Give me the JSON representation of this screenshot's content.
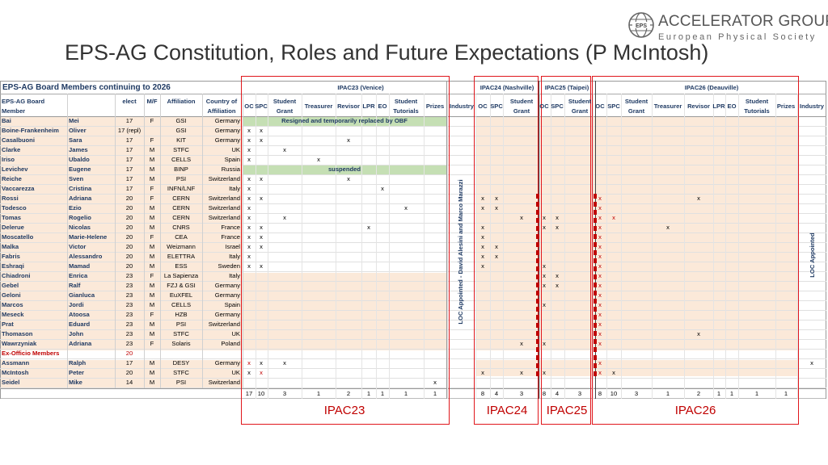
{
  "title": "EPS-AG Constitution, Roles and Future Expectations (P McIntosh)",
  "logo": {
    "badge": "EPS",
    "line1": "ACCELERATOR GROUP",
    "line2": "European Physical Society"
  },
  "header": {
    "board_title": "EPS-AG Board Members continuing to 2026",
    "sub": [
      "EPS-AG Board",
      "Member"
    ],
    "col_elect": "elect",
    "col_mf": "M/F",
    "col_aff": "Affiliation",
    "col_country": [
      "Country of",
      "Affiliation"
    ]
  },
  "role_cols": {
    "oc": "OC",
    "spc": "SPC",
    "student_grant": [
      "Student",
      "Grant"
    ],
    "treasurer": "Treasurer",
    "revisor": "Revisor",
    "lpr": "LPR",
    "eo": "EO",
    "student_tutorials": [
      "Student",
      "Tutorials"
    ],
    "prizes": "Prizes",
    "industry": "Industry"
  },
  "conferences": {
    "ipac23": "IPAC23 (Venice)",
    "ipac24": "IPAC24 (Nashville)",
    "ipac25": "IPAC25 (Taipei)",
    "ipac26": "IPAC26 (Deauville)"
  },
  "notes": {
    "bai": "Resigned and temporarily replaced by OBF",
    "levichev": "suspended",
    "loc_vertical": "LOC Appointed - David Alesini and Marco Marazzi",
    "loc_right": "LOC Appointed"
  },
  "exofficio_label": "Ex-Officio Members",
  "exofficio_elect": "20",
  "members": [
    {
      "surname": "Bai",
      "first": "Mei",
      "elect": "17",
      "mf": "F",
      "aff": "GSI",
      "country": "Germany"
    },
    {
      "surname": "Boine-Frankenheim",
      "first": "Oliver",
      "elect": "17 (repl)",
      "mf": "",
      "aff": "GSI",
      "country": "Germany"
    },
    {
      "surname": "Casalbuoni",
      "first": "Sara",
      "elect": "17",
      "mf": "F",
      "aff": "KIT",
      "country": "Germany"
    },
    {
      "surname": "Clarke",
      "first": "James",
      "elect": "17",
      "mf": "M",
      "aff": "STFC",
      "country": "UK"
    },
    {
      "surname": "Iriso",
      "first": "Ubaldo",
      "elect": "17",
      "mf": "M",
      "aff": "CELLS",
      "country": "Spain"
    },
    {
      "surname": "Levichev",
      "first": "Eugene",
      "elect": "17",
      "mf": "M",
      "aff": "BINP",
      "country": "Russia"
    },
    {
      "surname": "Reiche",
      "first": "Sven",
      "elect": "17",
      "mf": "M",
      "aff": "PSI",
      "country": "Switzerland"
    },
    {
      "surname": "Vaccarezza",
      "first": "Cristina",
      "elect": "17",
      "mf": "F",
      "aff": "INFN/LNF",
      "country": "Italy"
    },
    {
      "surname": "Rossi",
      "first": "Adriana",
      "elect": "20",
      "mf": "F",
      "aff": "CERN",
      "country": "Switzerland"
    },
    {
      "surname": "Todesco",
      "first": "Ezio",
      "elect": "20",
      "mf": "M",
      "aff": "CERN",
      "country": "Switzerland"
    },
    {
      "surname": "Tomas",
      "first": "Rogelio",
      "elect": "20",
      "mf": "M",
      "aff": "CERN",
      "country": "Switzerland"
    },
    {
      "surname": "Delerue",
      "first": "Nicolas",
      "elect": "20",
      "mf": "M",
      "aff": "CNRS",
      "country": "France"
    },
    {
      "surname": "Moscatello",
      "first": "Marie-Helene",
      "elect": "20",
      "mf": "F",
      "aff": "CEA",
      "country": "France"
    },
    {
      "surname": "Malka",
      "first": "Victor",
      "elect": "20",
      "mf": "M",
      "aff": "Weizmann",
      "country": "Israel"
    },
    {
      "surname": "Fabris",
      "first": "Alessandro",
      "elect": "20",
      "mf": "M",
      "aff": "ELETTRA",
      "country": "Italy"
    },
    {
      "surname": "Eshraqi",
      "first": "Mamad",
      "elect": "20",
      "mf": "M",
      "aff": "ESS",
      "country": "Sweden"
    },
    {
      "surname": "Chiadroni",
      "first": "Enrica",
      "elect": "23",
      "mf": "F",
      "aff": "La Sapienza",
      "country": "Italy"
    },
    {
      "surname": "Gebel",
      "first": "Ralf",
      "elect": "23",
      "mf": "M",
      "aff": "FZJ & GSI",
      "country": "Germany"
    },
    {
      "surname": "Geloni",
      "first": "Gianluca",
      "elect": "23",
      "mf": "M",
      "aff": "EuXFEL",
      "country": "Germany"
    },
    {
      "surname": "Marcos",
      "first": "Jordi",
      "elect": "23",
      "mf": "M",
      "aff": "CELLS",
      "country": "Spain"
    },
    {
      "surname": "Meseck",
      "first": "Atoosa",
      "elect": "23",
      "mf": "F",
      "aff": "HZB",
      "country": "Germany"
    },
    {
      "surname": "Prat",
      "first": "Eduard",
      "elect": "23",
      "mf": "M",
      "aff": "PSI",
      "country": "Switzerland"
    },
    {
      "surname": "Thomason",
      "first": "John",
      "elect": "23",
      "mf": "M",
      "aff": "STFC",
      "country": "UK"
    },
    {
      "surname": "Wawrzyniak",
      "first": "Adriana",
      "elect": "23",
      "mf": "F",
      "aff": "Solaris",
      "country": "Poland"
    },
    {
      "surname": "Assmann",
      "first": "Ralph",
      "elect": "17",
      "mf": "M",
      "aff": "DESY",
      "country": "Germany"
    },
    {
      "surname": "McIntosh",
      "first": "Peter",
      "elect": "20",
      "mf": "M",
      "aff": "STFC",
      "country": "UK"
    },
    {
      "surname": "Seidel",
      "first": "Mike",
      "elect": "14",
      "mf": "M",
      "aff": "PSI",
      "country": "Switzerland"
    }
  ],
  "mark": "x",
  "totals": {
    "ipac23": [
      "17",
      "10",
      "3",
      "1",
      "2",
      "1",
      "1",
      "1",
      "1"
    ],
    "ipac24": [
      "8",
      "4",
      "3"
    ],
    "ipac25": [
      "8",
      "4",
      "3"
    ],
    "ipac26": [
      "8",
      "10",
      "3",
      "1",
      "2",
      "1",
      "1",
      "1",
      "1"
    ]
  },
  "big_labels": {
    "ipac23": "IPAC23",
    "ipac24": "IPAC24",
    "ipac25": "IPAC25",
    "ipac26": "IPAC26"
  }
}
